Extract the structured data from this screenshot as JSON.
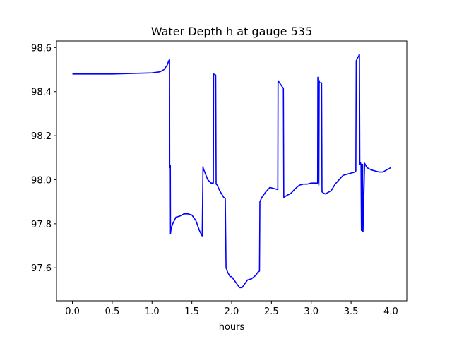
{
  "chart_data": {
    "type": "line",
    "title": "Water Depth h at gauge 535",
    "xlabel": "hours",
    "ylabel": "",
    "xlim": [
      -0.2,
      4.2
    ],
    "ylim": [
      97.45,
      98.63
    ],
    "xticks": [
      0.0,
      0.5,
      1.0,
      1.5,
      2.0,
      2.5,
      3.0,
      3.5,
      4.0
    ],
    "xtick_labels": [
      "0.0",
      "0.5",
      "1.0",
      "1.5",
      "2.0",
      "2.5",
      "3.0",
      "3.5",
      "4.0"
    ],
    "yticks": [
      97.6,
      97.8,
      98.0,
      98.2,
      98.4,
      98.6
    ],
    "ytick_labels": [
      "97.6",
      "97.8",
      "98.0",
      "98.2",
      "98.4",
      "98.6"
    ],
    "grid": false,
    "series": [
      {
        "color": "#0000ff",
        "x": [
          0.0,
          0.5,
          1.0,
          1.1,
          1.15,
          1.19,
          1.21,
          1.22,
          1.222,
          1.23,
          1.232,
          1.24,
          1.26,
          1.3,
          1.35,
          1.4,
          1.45,
          1.5,
          1.55,
          1.6,
          1.63,
          1.64,
          1.645,
          1.7,
          1.74,
          1.77,
          1.773,
          1.8,
          1.805,
          1.82,
          1.85,
          1.9,
          1.92,
          1.93,
          1.95,
          1.98,
          2.0,
          2.03,
          2.06,
          2.1,
          2.13,
          2.15,
          2.2,
          2.25,
          2.3,
          2.33,
          2.35,
          2.355,
          2.38,
          2.43,
          2.48,
          2.53,
          2.58,
          2.583,
          2.62,
          2.65,
          2.655,
          2.7,
          2.73,
          2.75,
          2.8,
          2.85,
          2.9,
          2.95,
          3.0,
          3.05,
          3.08,
          3.083,
          3.095,
          3.1,
          3.105,
          3.12,
          3.13,
          3.135,
          3.15,
          3.18,
          3.2,
          3.25,
          3.3,
          3.35,
          3.4,
          3.45,
          3.5,
          3.55,
          3.56,
          3.565,
          3.6,
          3.605,
          3.61,
          3.615,
          3.625,
          3.63,
          3.635,
          3.64,
          3.645,
          3.65,
          3.67,
          3.7,
          3.75,
          3.8,
          3.85,
          3.9,
          3.95,
          4.0
        ],
        "y": [
          98.48,
          98.48,
          98.485,
          98.49,
          98.5,
          98.52,
          98.54,
          98.545,
          98.055,
          98.065,
          97.755,
          97.78,
          97.8,
          97.83,
          97.835,
          97.845,
          97.845,
          97.84,
          97.815,
          97.765,
          97.745,
          98.06,
          98.05,
          98.0,
          97.985,
          97.985,
          98.48,
          98.475,
          97.98,
          97.975,
          97.95,
          97.92,
          97.915,
          97.6,
          97.58,
          97.56,
          97.56,
          97.545,
          97.53,
          97.51,
          97.51,
          97.52,
          97.545,
          97.55,
          97.565,
          97.58,
          97.585,
          97.9,
          97.92,
          97.945,
          97.965,
          97.96,
          97.955,
          98.45,
          98.43,
          98.415,
          97.92,
          97.93,
          97.935,
          97.94,
          97.96,
          97.975,
          97.98,
          97.98,
          97.985,
          97.985,
          97.985,
          98.465,
          97.975,
          98.45,
          98.44,
          98.44,
          98.44,
          97.945,
          97.94,
          97.935,
          97.94,
          97.95,
          97.98,
          98.0,
          98.02,
          98.025,
          98.03,
          98.035,
          98.04,
          98.54,
          98.565,
          98.57,
          98.07,
          98.08,
          98.07,
          97.77,
          98.07,
          97.765,
          98.07,
          97.765,
          98.075,
          98.055,
          98.045,
          98.04,
          98.035,
          98.035,
          98.045,
          98.055
        ]
      }
    ]
  }
}
